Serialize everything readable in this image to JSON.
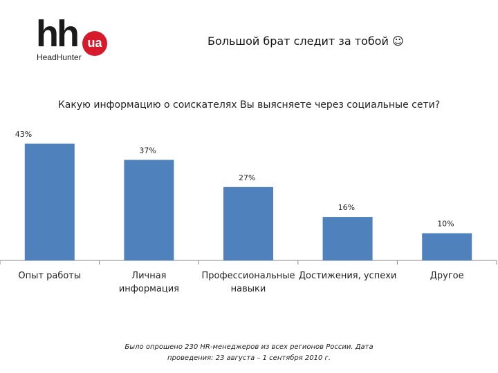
{
  "logo": {
    "mark": "hh",
    "badge": "ua",
    "brand": "HeadHunter"
  },
  "slide_title": "Большой брат следит за тобой ☺",
  "chart_data": {
    "type": "bar",
    "title": "Какую информацию о соискателях Вы выясняете через социальные сети?",
    "categories": [
      [
        "Опыт работы"
      ],
      [
        "Личная",
        "информация"
      ],
      [
        "Профессиональные",
        "навыки"
      ],
      [
        "Достижения, успехи"
      ],
      [
        "Другое"
      ]
    ],
    "values": [
      43,
      37,
      27,
      16,
      10
    ],
    "labels": [
      "43%",
      "37%",
      "27%",
      "16%",
      "10%"
    ],
    "ylim": [
      0,
      45
    ],
    "bar_color": "#4f81bd",
    "grid": false,
    "legend": "none"
  },
  "footnote": [
    "Было опрошено 230 HR-менеджеров из всех регионов России. Дата",
    "проведения: 23 августа – 1 сентября 2010 г."
  ]
}
